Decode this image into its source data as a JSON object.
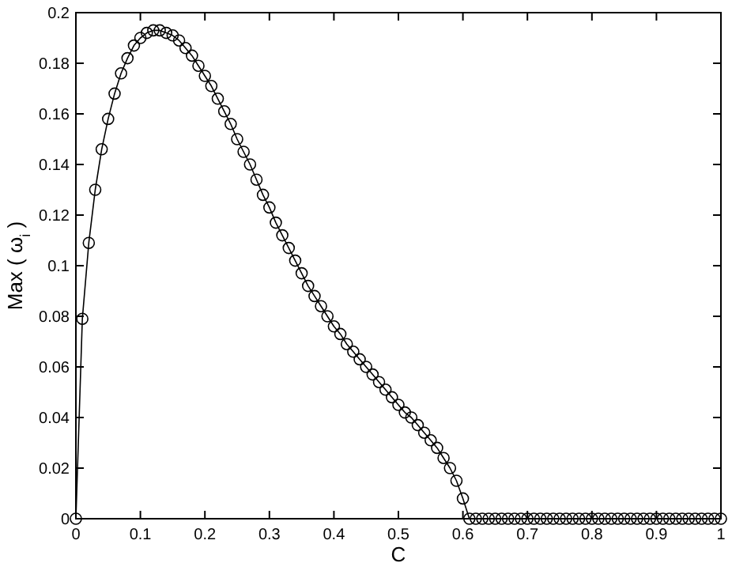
{
  "chart_data": {
    "type": "line",
    "xlabel": "C",
    "ylabel": "Max ( ω$_{i}$ )",
    "marker": "circle",
    "line_style": "solid",
    "grid": false,
    "xlim": [
      0,
      1
    ],
    "xticks": [
      0,
      0.1,
      0.2,
      0.3,
      0.4,
      0.5,
      0.6,
      0.7,
      0.8,
      0.9,
      1
    ],
    "ylim": [
      0,
      0.2
    ],
    "yticks": [
      0,
      0.02,
      0.04,
      0.06,
      0.08,
      0.1,
      0.12,
      0.14,
      0.16,
      0.18,
      0.2
    ],
    "x": [
      0,
      0.01,
      0.02,
      0.03,
      0.04,
      0.05,
      0.06,
      0.07,
      0.08,
      0.09,
      0.1,
      0.11,
      0.12,
      0.13,
      0.14,
      0.15,
      0.16,
      0.17,
      0.18,
      0.19,
      0.2,
      0.21,
      0.22,
      0.23,
      0.24,
      0.25,
      0.26,
      0.27,
      0.28,
      0.29,
      0.3,
      0.31,
      0.32,
      0.33,
      0.34,
      0.35,
      0.36,
      0.37,
      0.38,
      0.39,
      0.4,
      0.41,
      0.42,
      0.43,
      0.44,
      0.45,
      0.46,
      0.47,
      0.48,
      0.49,
      0.5,
      0.51,
      0.52,
      0.53,
      0.54,
      0.55,
      0.56,
      0.57,
      0.58,
      0.59,
      0.6,
      0.61,
      0.62,
      0.63,
      0.64,
      0.65,
      0.66,
      0.67,
      0.68,
      0.69,
      0.7,
      0.71,
      0.72,
      0.73,
      0.74,
      0.75,
      0.76,
      0.77,
      0.78,
      0.79,
      0.8,
      0.81,
      0.82,
      0.83,
      0.84,
      0.85,
      0.86,
      0.87,
      0.88,
      0.89,
      0.9,
      0.91,
      0.92,
      0.93,
      0.94,
      0.95,
      0.96,
      0.97,
      0.98,
      0.99,
      1
    ],
    "series": [
      {
        "color": "#000000",
        "values": [
          0,
          0.079,
          0.109,
          0.13,
          0.146,
          0.158,
          0.168,
          0.176,
          0.182,
          0.187,
          0.19,
          0.192,
          0.193,
          0.193,
          0.192,
          0.191,
          0.189,
          0.186,
          0.183,
          0.179,
          0.175,
          0.171,
          0.166,
          0.161,
          0.156,
          0.15,
          0.145,
          0.14,
          0.134,
          0.128,
          0.123,
          0.117,
          0.112,
          0.107,
          0.102,
          0.097,
          0.092,
          0.088,
          0.084,
          0.08,
          0.076,
          0.073,
          0.069,
          0.066,
          0.063,
          0.06,
          0.057,
          0.054,
          0.051,
          0.048,
          0.045,
          0.042,
          0.04,
          0.037,
          0.034,
          0.031,
          0.028,
          0.024,
          0.02,
          0.015,
          0.008,
          0,
          0,
          0,
          0,
          0,
          0,
          0,
          0,
          0,
          0,
          0,
          0,
          0,
          0,
          0,
          0,
          0,
          0,
          0,
          0,
          0,
          0,
          0,
          0,
          0,
          0,
          0,
          0,
          0,
          0,
          0,
          0,
          0,
          0,
          0,
          0,
          0,
          0,
          0,
          0
        ]
      }
    ]
  }
}
